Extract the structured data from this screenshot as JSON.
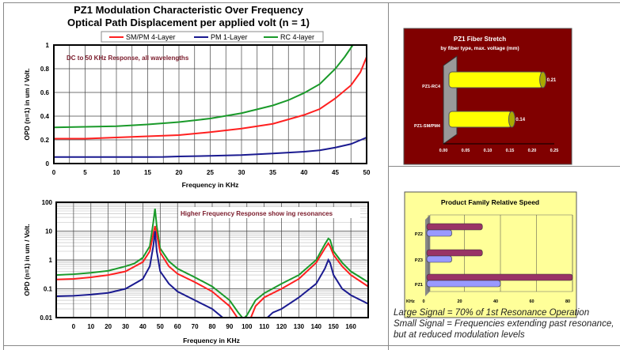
{
  "chart_data": [
    {
      "type": "line",
      "title": "PZ1 Modulation Characteristic Over Frequency",
      "subtitle": "Optical Path Displacement per applied volt (n = 1)",
      "annotation": "DC to 50 KHz Response, all wavelengths",
      "xlabel": "Frequency in KHz",
      "ylabel": "OPD (n=1) in um / Volt.",
      "xlim": [
        0,
        50
      ],
      "ylim": [
        0,
        1
      ],
      "xticks": [
        "0",
        "5",
        "10",
        "15",
        "20",
        "25",
        "30",
        "35",
        "40",
        "45",
        "50"
      ],
      "yticks": [
        "0",
        "0.2",
        "0.4",
        "0.6",
        "0.8",
        "1"
      ],
      "grid": true,
      "legend": "top",
      "series": [
        {
          "name": "SM/PM 4-Layer",
          "color": "#ff2020",
          "x": [
            0,
            5,
            10,
            15,
            20,
            25,
            30,
            35,
            40,
            42.5,
            45,
            47.5,
            49,
            50
          ],
          "y": [
            0.21,
            0.21,
            0.22,
            0.23,
            0.24,
            0.265,
            0.295,
            0.335,
            0.41,
            0.46,
            0.55,
            0.66,
            0.77,
            0.9
          ]
        },
        {
          "name": "PM 1-Layer",
          "color": "#1a1a90",
          "x": [
            0,
            5,
            10,
            15,
            17.5,
            20,
            25,
            30,
            35,
            40,
            42.5,
            45,
            47.5,
            50
          ],
          "y": [
            0.055,
            0.055,
            0.055,
            0.055,
            0.056,
            0.06,
            0.065,
            0.072,
            0.085,
            0.1,
            0.112,
            0.135,
            0.165,
            0.22
          ]
        },
        {
          "name": "RC 4-layer",
          "color": "#1a9a2a",
          "x": [
            0,
            5,
            10,
            15,
            20,
            25,
            30,
            35,
            37.5,
            40,
            42.5,
            45,
            46.5,
            47.8
          ],
          "y": [
            0.305,
            0.31,
            0.315,
            0.33,
            0.35,
            0.38,
            0.425,
            0.49,
            0.535,
            0.595,
            0.67,
            0.8,
            0.9,
            1.0
          ]
        }
      ]
    },
    {
      "type": "line",
      "annotation": "Higher Frequency Response show ing resonances",
      "xlabel": "Frequency in KHz",
      "ylabel": "OPD (n=1) in um / Volt.",
      "xlim": [
        -10,
        170
      ],
      "ylim": [
        0.01,
        100
      ],
      "yscale": "log",
      "xticks": [
        "0",
        "10",
        "20",
        "30",
        "40",
        "50",
        "60",
        "70",
        "80",
        "90",
        "100",
        "110",
        "120",
        "130",
        "140",
        "150",
        "160"
      ],
      "yticks": [
        "0.01",
        "0.1",
        "1",
        "10",
        "100"
      ],
      "grid": true,
      "series": [
        {
          "color": "#1a9a2a",
          "x": [
            -10,
            0,
            10,
            20,
            30,
            35,
            40,
            44,
            46,
            47,
            48,
            50,
            55,
            60,
            70,
            80,
            90,
            95,
            98,
            100,
            105,
            110,
            120,
            130,
            140,
            145,
            147,
            148,
            150,
            155,
            160,
            170
          ],
          "y": [
            0.3,
            0.32,
            0.36,
            0.42,
            0.6,
            0.75,
            1.2,
            3,
            20,
            60,
            15,
            2.5,
            0.9,
            0.5,
            0.25,
            0.12,
            0.04,
            0.015,
            0.009,
            0.012,
            0.04,
            0.07,
            0.15,
            0.3,
            1,
            3.5,
            5.5,
            5,
            2,
            0.8,
            0.4,
            0.17
          ]
        },
        {
          "color": "#ff2020",
          "x": [
            -10,
            0,
            10,
            20,
            30,
            40,
            44,
            46,
            47,
            48,
            50,
            55,
            60,
            70,
            80,
            90,
            95,
            102,
            105,
            110,
            120,
            130,
            140,
            145,
            147,
            148,
            150,
            155,
            160,
            170
          ],
          "y": [
            0.21,
            0.22,
            0.25,
            0.3,
            0.4,
            0.85,
            2,
            8,
            15,
            8,
            1.8,
            0.6,
            0.33,
            0.17,
            0.08,
            0.025,
            0.009,
            0.009,
            0.025,
            0.05,
            0.1,
            0.22,
            0.8,
            2.5,
            3.8,
            3,
            1.5,
            0.6,
            0.3,
            0.12
          ]
        },
        {
          "color": "#1a1a90",
          "x": [
            -10,
            0,
            10,
            20,
            30,
            40,
            44,
            46,
            47,
            48,
            50,
            55,
            60,
            70,
            80,
            87,
            111,
            115,
            120,
            130,
            140,
            145,
            147,
            148,
            150,
            155,
            160,
            170
          ],
          "y": [
            0.055,
            0.057,
            0.063,
            0.072,
            0.1,
            0.22,
            0.6,
            3,
            10,
            2,
            0.4,
            0.15,
            0.08,
            0.04,
            0.02,
            0.009,
            0.009,
            0.015,
            0.02,
            0.05,
            0.15,
            0.5,
            1,
            0.8,
            0.3,
            0.1,
            0.06,
            0.03
          ]
        }
      ]
    },
    {
      "type": "bar",
      "orientation": "horizontal",
      "title": "PZ1 Fiber Stretch",
      "subtitle": "by fiber type, max. voltage (mm)",
      "categories": [
        "PZ1-RC4",
        "PZ1-SM/PM4"
      ],
      "values": [
        0.21,
        0.14
      ],
      "data_labels": [
        "0.21",
        "0.14"
      ],
      "xlim": [
        0,
        0.25
      ],
      "xticks": [
        "0.00",
        "0.05",
        "0.10",
        "0.15",
        "0.20",
        "0.25"
      ],
      "background": "#800000",
      "bar_color": "#ffff00"
    },
    {
      "type": "bar",
      "orientation": "horizontal",
      "title": "Product Family Relative Speed",
      "categories": [
        "PZ2",
        "PZ3",
        "PZ1"
      ],
      "xlabel": "KHz",
      "xlim": [
        0,
        80
      ],
      "xticks": [
        "0",
        "20",
        "40",
        "60",
        "80"
      ],
      "background": "#ffff99",
      "series": [
        {
          "color": "#993366",
          "values": [
            30,
            30,
            80
          ]
        },
        {
          "color": "#9999ff",
          "values": [
            13,
            13,
            40
          ]
        }
      ]
    }
  ],
  "notes": [
    "Large Signal = 70% of 1st Resonance Operation",
    "Small Signal = Frequencies extending past resonance,",
    "but at reduced modulation levels"
  ]
}
